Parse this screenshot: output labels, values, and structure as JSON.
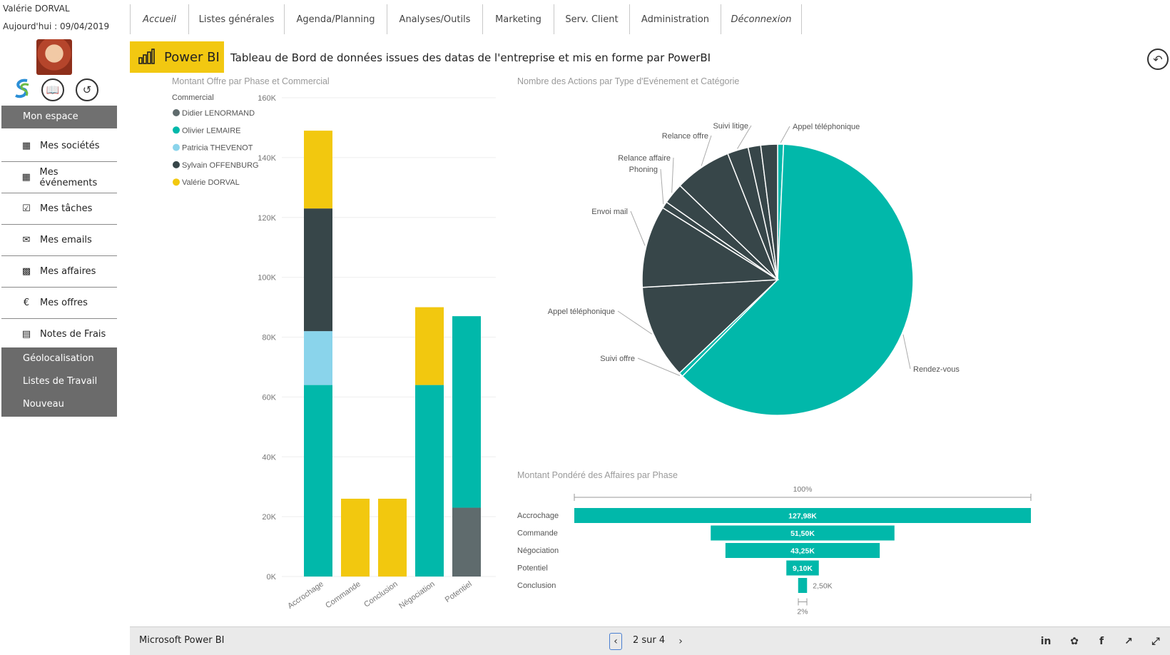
{
  "user": {
    "name": "Valérie DORVAL",
    "today": "Aujourd'hui : 09/04/2019"
  },
  "sidebar": {
    "header": "Mon espace",
    "items": [
      {
        "label": "Mes sociétés",
        "icon": "building-icon"
      },
      {
        "label": "Mes événements",
        "icon": "calendar-icon"
      },
      {
        "label": "Mes tâches",
        "icon": "checklist-icon"
      },
      {
        "label": "Mes emails",
        "icon": "envelope-icon"
      },
      {
        "label": "Mes affaires",
        "icon": "briefcase-icon"
      },
      {
        "label": "Mes offres",
        "icon": "euro-icon"
      },
      {
        "label": "Notes de Frais",
        "icon": "document-icon"
      }
    ],
    "extra": [
      "Géolocalisation",
      "Listes de Travail",
      "Nouveau"
    ]
  },
  "nav": {
    "tabs": [
      {
        "label": "Accueil",
        "italic": true
      },
      {
        "label": "Listes générales",
        "italic": false
      },
      {
        "label": "Agenda/Planning",
        "italic": false
      },
      {
        "label": "Analyses/Outils",
        "italic": false
      },
      {
        "label": "Marketing",
        "italic": false
      },
      {
        "label": "Serv. Client",
        "italic": false
      },
      {
        "label": "Administration",
        "italic": false
      },
      {
        "label": "Déconnexion",
        "italic": true
      }
    ]
  },
  "banner": {
    "brand": "Power BI",
    "title": "Tableau de Bord de données issues des datas de l'entreprise et mis en forme par PowerBI",
    "brand_color": "#F2C811"
  },
  "chart_data": [
    {
      "type": "bar",
      "stacked": true,
      "title": "Montant Offre par Phase et Commercial",
      "legend_title": "Commercial",
      "categories": [
        "Accrochage",
        "Commande",
        "Conclusion",
        "Négociation",
        "Potentiel"
      ],
      "yticks": [
        "0K",
        "20K",
        "40K",
        "60K",
        "80K",
        "100K",
        "120K",
        "140K",
        "160K"
      ],
      "ylim": [
        0,
        160000
      ],
      "series": [
        {
          "name": "Didier LENORMAND",
          "color": "#5F6B6D",
          "values": [
            0,
            0,
            0,
            0,
            23000
          ]
        },
        {
          "name": "Olivier LEMAIRE",
          "color": "#01B8AA",
          "values": [
            64000,
            0,
            0,
            64000,
            64000
          ]
        },
        {
          "name": "Patricia THEVENOT",
          "color": "#8AD4EB",
          "values": [
            18000,
            0,
            0,
            0,
            0
          ]
        },
        {
          "name": "Sylvain OFFENBURG",
          "color": "#374649",
          "values": [
            41000,
            0,
            0,
            0,
            0
          ]
        },
        {
          "name": "Valérie DORVAL",
          "color": "#F2C80F",
          "values": [
            26000,
            26000,
            26000,
            26000,
            0
          ]
        }
      ]
    },
    {
      "type": "pie",
      "title": "Nombre des Actions par Type d'Evénement et Catégorie",
      "slices": [
        {
          "label": "Appel téléphonique",
          "value": 0.7,
          "color": "#01B8AA"
        },
        {
          "label": "Rendez-vous",
          "value": 61.7,
          "color": "#01B8AA"
        },
        {
          "label": "Suivi offre",
          "value": 0.5,
          "color": "#01B8AA"
        },
        {
          "label": "Appel téléphonique",
          "value": 11.2,
          "color": "#374649"
        },
        {
          "label": "Envoi mail",
          "value": 9.8,
          "color": "#374649"
        },
        {
          "label": "Phoning",
          "value": 0.8,
          "color": "#374649"
        },
        {
          "label": "Relance affaire",
          "value": 2.5,
          "color": "#374649"
        },
        {
          "label": "Relance offre",
          "value": 6.8,
          "color": "#374649"
        },
        {
          "label": "Suivi litige",
          "value": 2.5,
          "color": "#374649"
        },
        {
          "label": "",
          "value": 1.5,
          "color": "#374649"
        },
        {
          "label": "",
          "value": 2.0,
          "color": "#374649"
        }
      ]
    },
    {
      "type": "funnel",
      "title": "Montant Pondéré des Affaires par Phase",
      "top_label": "100%",
      "bottom_label": "2%",
      "color": "#01B8AA",
      "categories": [
        "Accrochage",
        "Commande",
        "Négociation",
        "Potentiel",
        "Conclusion"
      ],
      "values": [
        127980,
        51500,
        43250,
        9100,
        2500
      ],
      "value_labels": [
        "127,98K",
        "51,50K",
        "43,25K",
        "9,10K",
        "2,50K"
      ]
    }
  ],
  "footer": {
    "brand": "Microsoft Power BI",
    "pager": "2 sur 4",
    "share_icons": [
      "linkedin-icon",
      "twitter-icon",
      "facebook-icon",
      "share-icon",
      "fullscreen-icon"
    ]
  }
}
